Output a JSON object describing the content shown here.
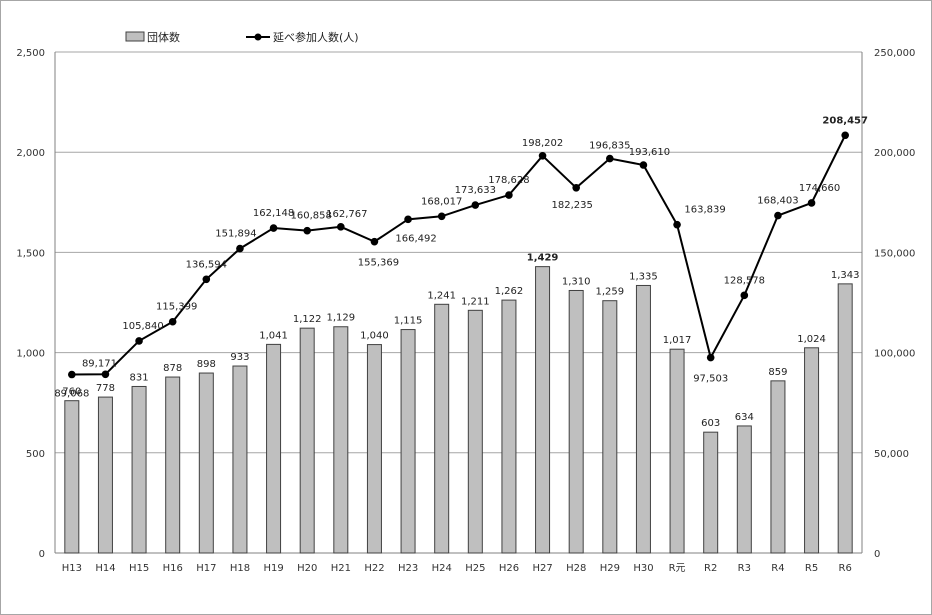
{
  "chart_data": {
    "type": "bar+line",
    "legend": {
      "bar_label": "団体数",
      "line_label": "延べ参加人数(人)",
      "placement": "top-left"
    },
    "categories": [
      "H13",
      "H14",
      "H15",
      "H16",
      "H17",
      "H18",
      "H19",
      "H20",
      "H21",
      "H22",
      "H23",
      "H24",
      "H25",
      "H26",
      "H27",
      "H28",
      "H29",
      "H30",
      "R元",
      "R2",
      "R3",
      "R4",
      "R5",
      "R6"
    ],
    "bar_values": [
      760,
      778,
      831,
      878,
      898,
      933,
      1041,
      1122,
      1129,
      1040,
      1115,
      1241,
      1211,
      1262,
      1429,
      1310,
      1259,
      1335,
      1017,
      603,
      634,
      859,
      1024,
      1343
    ],
    "bar_labels": [
      "760",
      "778",
      "831",
      "878",
      "898",
      "933",
      "1,041",
      "1,122",
      "1,129",
      "1,040",
      "1,115",
      "1,241",
      "1,211",
      "1,262",
      "1,429",
      "1,310",
      "1,259",
      "1,335",
      "1,017",
      "603",
      "634",
      "859",
      "1,024",
      "1,343"
    ],
    "line_values": [
      89068,
      89171,
      105840,
      115399,
      136594,
      151894,
      162148,
      160858,
      162767,
      155369,
      166492,
      168017,
      173633,
      178628,
      198202,
      182235,
      196835,
      193610,
      163839,
      97503,
      128578,
      168403,
      174660,
      208457
    ],
    "line_labels": [
      "89,068",
      "89,171",
      "105,840",
      "115,399",
      "136,594",
      "151,894",
      "162,148",
      "160,858",
      "162,767",
      "155,369",
      "166,492",
      "168,017",
      "173,633",
      "178,628",
      "198,202",
      "182,235",
      "196,835",
      "193,610",
      "163,839",
      "97,503",
      "128,578",
      "168,403",
      "174,660",
      "208,457"
    ],
    "left_axis": {
      "min": 0,
      "max": 2500,
      "ticks": [
        "0",
        "500",
        "1,000",
        "1,500",
        "2,000",
        "2,500"
      ]
    },
    "right_axis": {
      "min": 0,
      "max": 250000,
      "ticks": [
        "0",
        "50,000",
        "100,000",
        "150,000",
        "200,000",
        "250,000"
      ]
    },
    "grid": true,
    "colors": {
      "bar_fill": "#bfbfbf",
      "bar_stroke": "#404040",
      "line": "#000000",
      "grid": "#a6a6a6"
    }
  }
}
